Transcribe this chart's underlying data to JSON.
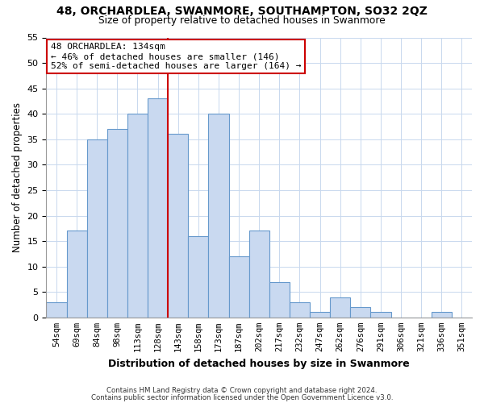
{
  "title": "48, ORCHARDLEA, SWANMORE, SOUTHAMPTON, SO32 2QZ",
  "subtitle": "Size of property relative to detached houses in Swanmore",
  "xlabel": "Distribution of detached houses by size in Swanmore",
  "ylabel": "Number of detached properties",
  "bar_labels": [
    "54sqm",
    "69sqm",
    "84sqm",
    "98sqm",
    "113sqm",
    "128sqm",
    "143sqm",
    "158sqm",
    "173sqm",
    "187sqm",
    "202sqm",
    "217sqm",
    "232sqm",
    "247sqm",
    "262sqm",
    "276sqm",
    "291sqm",
    "306sqm",
    "321sqm",
    "336sqm",
    "351sqm"
  ],
  "bar_heights": [
    3,
    17,
    35,
    37,
    40,
    43,
    36,
    16,
    40,
    12,
    17,
    7,
    3,
    1,
    4,
    2,
    1,
    0,
    0,
    1,
    0
  ],
  "bar_color": "#c9d9f0",
  "bar_edge_color": "#6699cc",
  "vline_color": "#cc0000",
  "annotation_title": "48 ORCHARDLEA: 134sqm",
  "annotation_line1": "← 46% of detached houses are smaller (146)",
  "annotation_line2": "52% of semi-detached houses are larger (164) →",
  "annotation_box_color": "#ffffff",
  "annotation_box_edge": "#cc0000",
  "ylim": [
    0,
    55
  ],
  "yticks": [
    0,
    5,
    10,
    15,
    20,
    25,
    30,
    35,
    40,
    45,
    50,
    55
  ],
  "footer1": "Contains HM Land Registry data © Crown copyright and database right 2024.",
  "footer2": "Contains public sector information licensed under the Open Government Licence v3.0."
}
